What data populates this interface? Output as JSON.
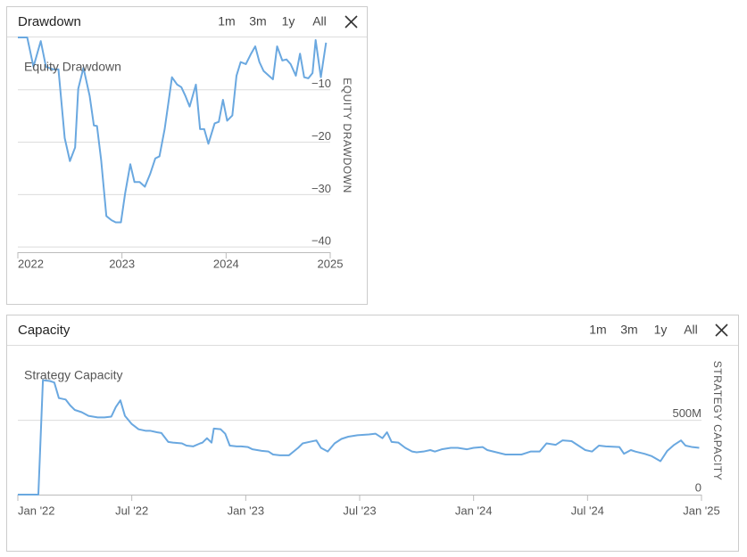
{
  "chart_data": [
    {
      "type": "line",
      "title": "Drawdown",
      "range_buttons": [
        "1m",
        "3m",
        "1y",
        "All"
      ],
      "y_label": "EQUITY DRAWDOWN",
      "grid": true,
      "xlim": [
        2022,
        2025
      ],
      "xticks": [
        2022,
        2023,
        2024,
        2025
      ],
      "ylim": [
        -41,
        0
      ],
      "yticks": [
        {
          "value": -10,
          "label": "−10"
        },
        {
          "value": -20,
          "label": "−20"
        },
        {
          "value": -30,
          "label": "−30"
        },
        {
          "value": -40,
          "label": "−40"
        }
      ],
      "x": [
        2022.0,
        2022.09,
        2022.15,
        2022.22,
        2022.27,
        2022.34,
        2022.39,
        2022.45,
        2022.5,
        2022.55,
        2022.58,
        2022.63,
        2022.69,
        2022.73,
        2022.76,
        2022.8,
        2022.85,
        2022.9,
        2022.94,
        2022.99,
        2023.03,
        2023.08,
        2023.12,
        2023.17,
        2023.22,
        2023.27,
        2023.32,
        2023.36,
        2023.41,
        2023.45,
        2023.48,
        2023.53,
        2023.57,
        2023.61,
        2023.65,
        2023.71,
        2023.75,
        2023.79,
        2023.83,
        2023.89,
        2023.93,
        2023.97,
        2024.01,
        2024.06,
        2024.1,
        2024.14,
        2024.19,
        2024.24,
        2024.28,
        2024.32,
        2024.36,
        2024.41,
        2024.45,
        2024.49,
        2024.54,
        2024.58,
        2024.62,
        2024.67,
        2024.71,
        2024.75,
        2024.79,
        2024.83,
        2024.86,
        2024.91,
        2024.96
      ],
      "series": [
        {
          "name": "Equity Drawdown",
          "color": "#6aa8e0",
          "values": [
            0,
            0,
            -5.6,
            -0.7,
            -5.6,
            -6.1,
            -6.1,
            -19.2,
            -23.6,
            -21.0,
            -9.8,
            -5.8,
            -11.2,
            -16.8,
            -16.9,
            -23.4,
            -34.1,
            -34.9,
            -35.3,
            -35.3,
            -29.8,
            -24.2,
            -27.6,
            -27.6,
            -28.5,
            -26.1,
            -23.1,
            -22.7,
            -17.5,
            -11.9,
            -7.6,
            -9.0,
            -9.5,
            -11.2,
            -13.2,
            -9.0,
            -17.5,
            -17.5,
            -20.3,
            -16.4,
            -16.1,
            -11.9,
            -15.9,
            -14.9,
            -7.3,
            -4.7,
            -5.1,
            -3.1,
            -1.7,
            -4.7,
            -6.4,
            -7.3,
            -8.0,
            -1.7,
            -4.4,
            -4.2,
            -5.1,
            -7.3,
            -3.1,
            -7.6,
            -7.8,
            -6.8,
            -0.5,
            -7.6,
            -1.0
          ]
        }
      ]
    },
    {
      "type": "line",
      "title": "Capacity",
      "range_buttons": [
        "1m",
        "3m",
        "1y",
        "All"
      ],
      "y_label": "STRATEGY CAPACITY",
      "grid": true,
      "xlim": [
        2022,
        2025
      ],
      "xticks": [
        {
          "value": 2022,
          "label": "Jan '22"
        },
        {
          "value": 2022.5,
          "label": "Jul '22"
        },
        {
          "value": 2023,
          "label": "Jan '23"
        },
        {
          "value": 2023.5,
          "label": "Jul '23"
        },
        {
          "value": 2024,
          "label": "Jan '24"
        },
        {
          "value": 2024.5,
          "label": "Jul '24"
        },
        {
          "value": 2025,
          "label": "Jan '25"
        }
      ],
      "ylim": [
        0,
        960
      ],
      "yticks": [
        0,
        {
          "value": 500,
          "label": "500M"
        }
      ],
      "x": [
        2022.0,
        2022.09,
        2022.11,
        2022.14,
        2022.16,
        2022.18,
        2022.21,
        2022.23,
        2022.25,
        2022.28,
        2022.31,
        2022.33,
        2022.35,
        2022.38,
        2022.41,
        2022.43,
        2022.45,
        2022.47,
        2022.5,
        2022.53,
        2022.56,
        2022.58,
        2022.61,
        2022.63,
        2022.66,
        2022.68,
        2022.72,
        2022.74,
        2022.77,
        2022.8,
        2022.81,
        2022.83,
        2022.85,
        2022.86,
        2022.89,
        2022.91,
        2022.93,
        2022.96,
        2022.98,
        2023.01,
        2023.03,
        2023.07,
        2023.1,
        2023.12,
        2023.15,
        2023.19,
        2023.23,
        2023.25,
        2023.28,
        2023.31,
        2023.33,
        2023.36,
        2023.39,
        2023.42,
        2023.45,
        2023.49,
        2023.54,
        2023.57,
        2023.6,
        2023.62,
        2023.64,
        2023.67,
        2023.7,
        2023.73,
        2023.75,
        2023.78,
        2023.81,
        2023.83,
        2023.86,
        2023.9,
        2023.93,
        2023.97,
        2024.0,
        2024.04,
        2024.06,
        2024.1,
        2024.14,
        2024.17,
        2024.21,
        2024.25,
        2024.29,
        2024.32,
        2024.36,
        2024.39,
        2024.43,
        2024.46,
        2024.49,
        2024.52,
        2024.55,
        2024.58,
        2024.64,
        2024.66,
        2024.69,
        2024.71,
        2024.75,
        2024.78,
        2024.82,
        2024.85,
        2024.88,
        2024.91,
        2024.93,
        2024.96,
        2024.99
      ],
      "series": [
        {
          "name": "Strategy Capacity",
          "color": "#6aa8e0",
          "values": [
            0,
            0,
            770,
            765,
            755,
            650,
            640,
            600,
            570,
            555,
            530,
            525,
            520,
            520,
            525,
            590,
            635,
            530,
            475,
            440,
            430,
            430,
            420,
            415,
            355,
            350,
            345,
            330,
            325,
            345,
            350,
            380,
            350,
            445,
            440,
            410,
            330,
            325,
            325,
            320,
            305,
            295,
            290,
            270,
            265,
            265,
            315,
            345,
            355,
            365,
            315,
            290,
            345,
            375,
            390,
            400,
            405,
            410,
            380,
            420,
            355,
            350,
            315,
            290,
            285,
            290,
            300,
            290,
            305,
            315,
            315,
            305,
            315,
            320,
            300,
            285,
            270,
            270,
            270,
            290,
            290,
            345,
            335,
            365,
            360,
            330,
            300,
            290,
            330,
            325,
            320,
            275,
            300,
            290,
            275,
            260,
            225,
            295,
            335,
            365,
            330,
            320,
            315
          ]
        }
      ]
    }
  ]
}
